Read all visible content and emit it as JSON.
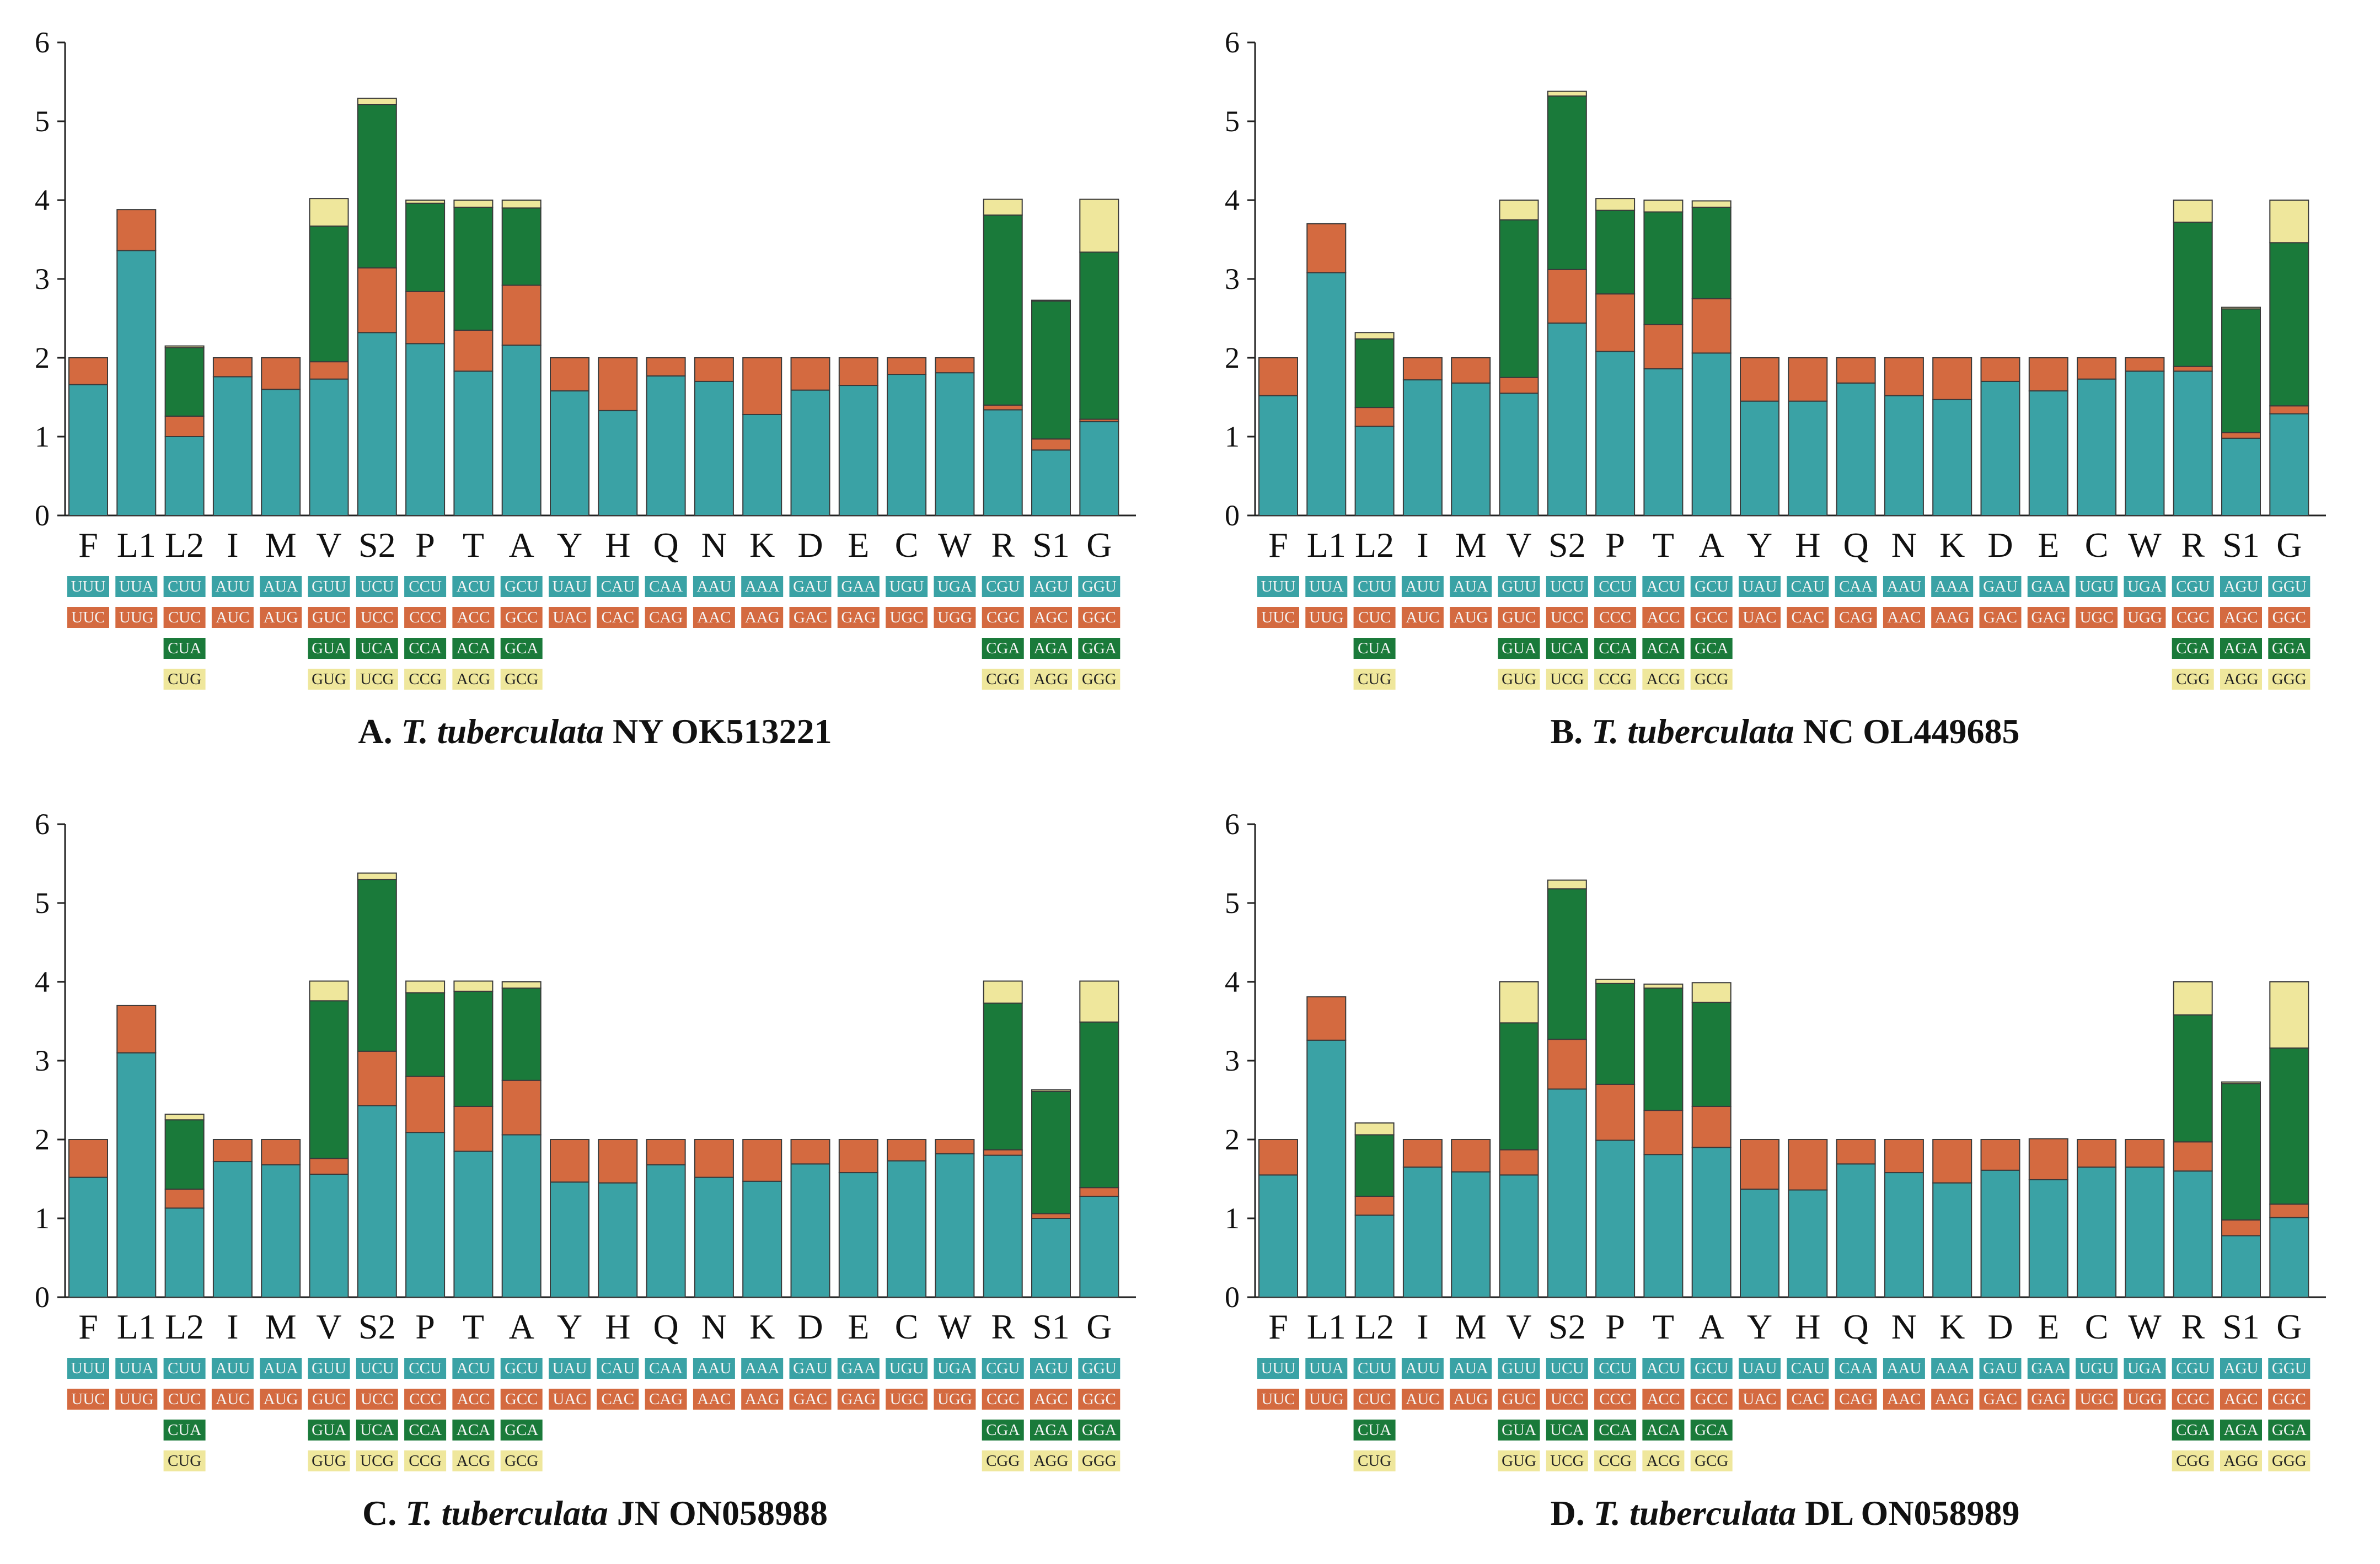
{
  "colors": {
    "teal": "#3aa2a5",
    "orange": "#d46a40",
    "green": "#1a7a3a",
    "yellow": "#efe79c",
    "axis": "#222222"
  },
  "codon_table": {
    "categories": [
      "F",
      "L1",
      "L2",
      "I",
      "M",
      "V",
      "S2",
      "P",
      "T",
      "A",
      "Y",
      "H",
      "Q",
      "N",
      "K",
      "D",
      "E",
      "C",
      "W",
      "R",
      "S1",
      "G"
    ],
    "rows": [
      [
        "UUU",
        "UUA",
        "CUU",
        "AUU",
        "AUA",
        "GUU",
        "UCU",
        "CCU",
        "ACU",
        "GCU",
        "UAU",
        "CAU",
        "CAA",
        "AAU",
        "AAA",
        "GAU",
        "GAA",
        "UGU",
        "UGA",
        "CGU",
        "AGU",
        "GGU"
      ],
      [
        "UUC",
        "UUG",
        "CUC",
        "AUC",
        "AUG",
        "GUC",
        "UCC",
        "CCC",
        "ACC",
        "GCC",
        "UAC",
        "CAC",
        "CAG",
        "AAC",
        "AAG",
        "GAC",
        "GAG",
        "UGC",
        "UGG",
        "CGC",
        "AGC",
        "GGC"
      ],
      [
        "",
        "",
        "CUA",
        "",
        "",
        "GUA",
        "UCA",
        "CCA",
        "ACA",
        "GCA",
        "",
        "",
        "",
        "",
        "",
        "",
        "",
        "",
        "",
        "CGA",
        "AGA",
        "GGA"
      ],
      [
        "",
        "",
        "CUG",
        "",
        "",
        "GUG",
        "UCG",
        "CCG",
        "ACG",
        "GCG",
        "",
        "",
        "",
        "",
        "",
        "",
        "",
        "",
        "",
        "CGG",
        "AGG",
        "GGG"
      ]
    ]
  },
  "chart_data": [
    {
      "type": "bar",
      "subtype": "stacked",
      "panel": "A.",
      "species": "T. tuberculata",
      "suffix": "NY OK513221",
      "ylim": [
        0,
        6
      ],
      "yticks": [
        0,
        1,
        2,
        3,
        4,
        5,
        6
      ],
      "categories": [
        "F",
        "L1",
        "L2",
        "I",
        "M",
        "V",
        "S2",
        "P",
        "T",
        "A",
        "Y",
        "H",
        "Q",
        "N",
        "K",
        "D",
        "E",
        "C",
        "W",
        "R",
        "S1",
        "G"
      ],
      "series": [
        {
          "name": "codon 1",
          "values": [
            1.66,
            3.36,
            1.0,
            1.76,
            1.6,
            1.73,
            2.32,
            2.18,
            1.83,
            2.16,
            1.58,
            1.33,
            1.77,
            1.7,
            1.28,
            1.59,
            1.65,
            1.79,
            1.81,
            1.34,
            0.83,
            1.19
          ]
        },
        {
          "name": "codon 2",
          "values": [
            0.34,
            0.52,
            0.26,
            0.24,
            0.4,
            0.22,
            0.82,
            0.66,
            0.52,
            0.76,
            0.42,
            0.67,
            0.23,
            0.3,
            0.72,
            0.41,
            0.35,
            0.21,
            0.19,
            0.06,
            0.14,
            0.03
          ]
        },
        {
          "name": "codon 3",
          "values": [
            0,
            0,
            0.87,
            0,
            0,
            1.72,
            2.07,
            1.12,
            1.56,
            0.98,
            0,
            0,
            0,
            0,
            0,
            0,
            0,
            0,
            0,
            2.41,
            1.75,
            2.12
          ]
        },
        {
          "name": "codon 4",
          "values": [
            0,
            0,
            0.02,
            0,
            0,
            0.35,
            0.08,
            0.04,
            0.09,
            0.1,
            0,
            0,
            0,
            0,
            0,
            0,
            0,
            0,
            0,
            0.2,
            0.01,
            0.67
          ]
        }
      ]
    },
    {
      "type": "bar",
      "subtype": "stacked",
      "panel": "B.",
      "species": "T. tuberculata",
      "suffix": "NC OL449685",
      "ylim": [
        0,
        6
      ],
      "yticks": [
        0,
        1,
        2,
        3,
        4,
        5,
        6
      ],
      "categories": [
        "F",
        "L1",
        "L2",
        "I",
        "M",
        "V",
        "S2",
        "P",
        "T",
        "A",
        "Y",
        "H",
        "Q",
        "N",
        "K",
        "D",
        "E",
        "C",
        "W",
        "R",
        "S1",
        "G"
      ],
      "series": [
        {
          "name": "codon 1",
          "values": [
            1.52,
            3.08,
            1.13,
            1.72,
            1.68,
            1.55,
            2.44,
            2.08,
            1.86,
            2.06,
            1.45,
            1.45,
            1.68,
            1.52,
            1.47,
            1.7,
            1.58,
            1.73,
            1.83,
            1.83,
            0.98,
            1.29
          ]
        },
        {
          "name": "codon 2",
          "values": [
            0.48,
            0.62,
            0.24,
            0.28,
            0.32,
            0.2,
            0.68,
            0.73,
            0.56,
            0.69,
            0.55,
            0.55,
            0.32,
            0.48,
            0.53,
            0.3,
            0.42,
            0.27,
            0.17,
            0.06,
            0.07,
            0.1
          ]
        },
        {
          "name": "codon 3",
          "values": [
            0,
            0,
            0.87,
            0,
            0,
            2.0,
            2.2,
            1.06,
            1.43,
            1.16,
            0,
            0,
            0,
            0,
            0,
            0,
            0,
            0,
            0,
            1.83,
            1.57,
            2.07
          ]
        },
        {
          "name": "codon 4",
          "values": [
            0,
            0,
            0.08,
            0,
            0,
            0.25,
            0.06,
            0.15,
            0.15,
            0.08,
            0,
            0,
            0,
            0,
            0,
            0,
            0,
            0,
            0,
            0.28,
            0.02,
            0.54
          ]
        }
      ]
    },
    {
      "type": "bar",
      "subtype": "stacked",
      "panel": "C.",
      "species": "T. tuberculata",
      "suffix": "JN ON058988",
      "ylim": [
        0,
        6
      ],
      "yticks": [
        0,
        1,
        2,
        3,
        4,
        5,
        6
      ],
      "categories": [
        "F",
        "L1",
        "L2",
        "I",
        "M",
        "V",
        "S2",
        "P",
        "T",
        "A",
        "Y",
        "H",
        "Q",
        "N",
        "K",
        "D",
        "E",
        "C",
        "W",
        "R",
        "S1",
        "G"
      ],
      "series": [
        {
          "name": "codon 1",
          "values": [
            1.52,
            3.1,
            1.13,
            1.72,
            1.68,
            1.56,
            2.43,
            2.09,
            1.85,
            2.06,
            1.46,
            1.45,
            1.68,
            1.52,
            1.47,
            1.69,
            1.58,
            1.73,
            1.82,
            1.8,
            1.0,
            1.28
          ]
        },
        {
          "name": "codon 2",
          "values": [
            0.48,
            0.6,
            0.24,
            0.28,
            0.32,
            0.2,
            0.69,
            0.71,
            0.57,
            0.69,
            0.54,
            0.55,
            0.32,
            0.48,
            0.53,
            0.31,
            0.42,
            0.27,
            0.18,
            0.07,
            0.06,
            0.11
          ]
        },
        {
          "name": "codon 3",
          "values": [
            0,
            0,
            0.88,
            0,
            0,
            2.0,
            2.18,
            1.06,
            1.46,
            1.17,
            0,
            0,
            0,
            0,
            0,
            0,
            0,
            0,
            0,
            1.86,
            1.55,
            2.1
          ]
        },
        {
          "name": "codon 4",
          "values": [
            0,
            0,
            0.07,
            0,
            0,
            0.25,
            0.08,
            0.15,
            0.13,
            0.08,
            0,
            0,
            0,
            0,
            0,
            0,
            0,
            0,
            0,
            0.28,
            0.02,
            0.52
          ]
        }
      ]
    },
    {
      "type": "bar",
      "subtype": "stacked",
      "panel": "D.",
      "species": "T. tuberculata",
      "suffix": "DL ON058989",
      "ylim": [
        0,
        6
      ],
      "yticks": [
        0,
        1,
        2,
        3,
        4,
        5,
        6
      ],
      "categories": [
        "F",
        "L1",
        "L2",
        "I",
        "M",
        "V",
        "S2",
        "P",
        "T",
        "A",
        "Y",
        "H",
        "Q",
        "N",
        "K",
        "D",
        "E",
        "C",
        "W",
        "R",
        "S1",
        "G"
      ],
      "series": [
        {
          "name": "codon 1",
          "values": [
            1.55,
            3.26,
            1.04,
            1.65,
            1.59,
            1.55,
            2.64,
            1.99,
            1.81,
            1.9,
            1.37,
            1.36,
            1.69,
            1.58,
            1.45,
            1.61,
            1.49,
            1.65,
            1.65,
            1.6,
            0.78,
            1.01
          ]
        },
        {
          "name": "codon 2",
          "values": [
            0.45,
            0.55,
            0.24,
            0.35,
            0.41,
            0.32,
            0.63,
            0.71,
            0.56,
            0.52,
            0.63,
            0.64,
            0.31,
            0.42,
            0.55,
            0.39,
            0.52,
            0.35,
            0.35,
            0.37,
            0.2,
            0.17
          ]
        },
        {
          "name": "codon 3",
          "values": [
            0,
            0,
            0.78,
            0,
            0,
            1.61,
            1.91,
            1.28,
            1.55,
            1.32,
            0,
            0,
            0,
            0,
            0,
            0,
            0,
            0,
            0,
            1.61,
            1.73,
            1.98
          ]
        },
        {
          "name": "codon 4",
          "values": [
            0,
            0,
            0.15,
            0,
            0,
            0.52,
            0.11,
            0.05,
            0.05,
            0.25,
            0,
            0,
            0,
            0,
            0,
            0,
            0,
            0,
            0,
            0.42,
            0.02,
            0.84
          ]
        }
      ]
    }
  ]
}
